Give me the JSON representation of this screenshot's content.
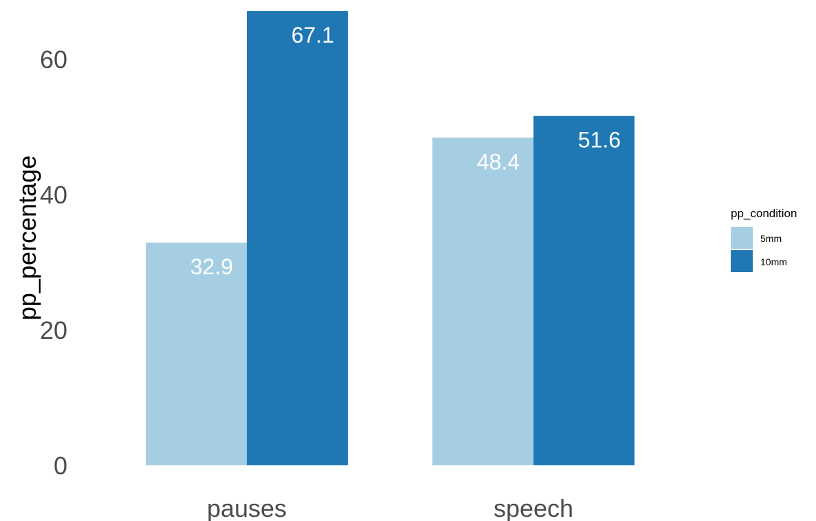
{
  "chart_data": {
    "type": "bar",
    "categories": [
      "pauses",
      "speech"
    ],
    "series": [
      {
        "name": "5mm",
        "values": [
          32.9,
          48.4
        ],
        "color": "#a6cee3"
      },
      {
        "name": "10mm",
        "values": [
          67.1,
          51.6
        ],
        "color": "#1f78b4"
      }
    ],
    "data_labels": [
      [
        "32.9",
        "48.4"
      ],
      [
        "67.1",
        "51.6"
      ]
    ],
    "xlabel": "",
    "ylabel": "pp_percentage",
    "ylim": [
      0,
      67.1
    ],
    "yticks": [
      0,
      20,
      40,
      60
    ],
    "ytick_labels": [
      "0",
      "20",
      "40",
      "60"
    ],
    "grid": false,
    "legend": {
      "title": "pp_condition",
      "placement": "right"
    }
  }
}
